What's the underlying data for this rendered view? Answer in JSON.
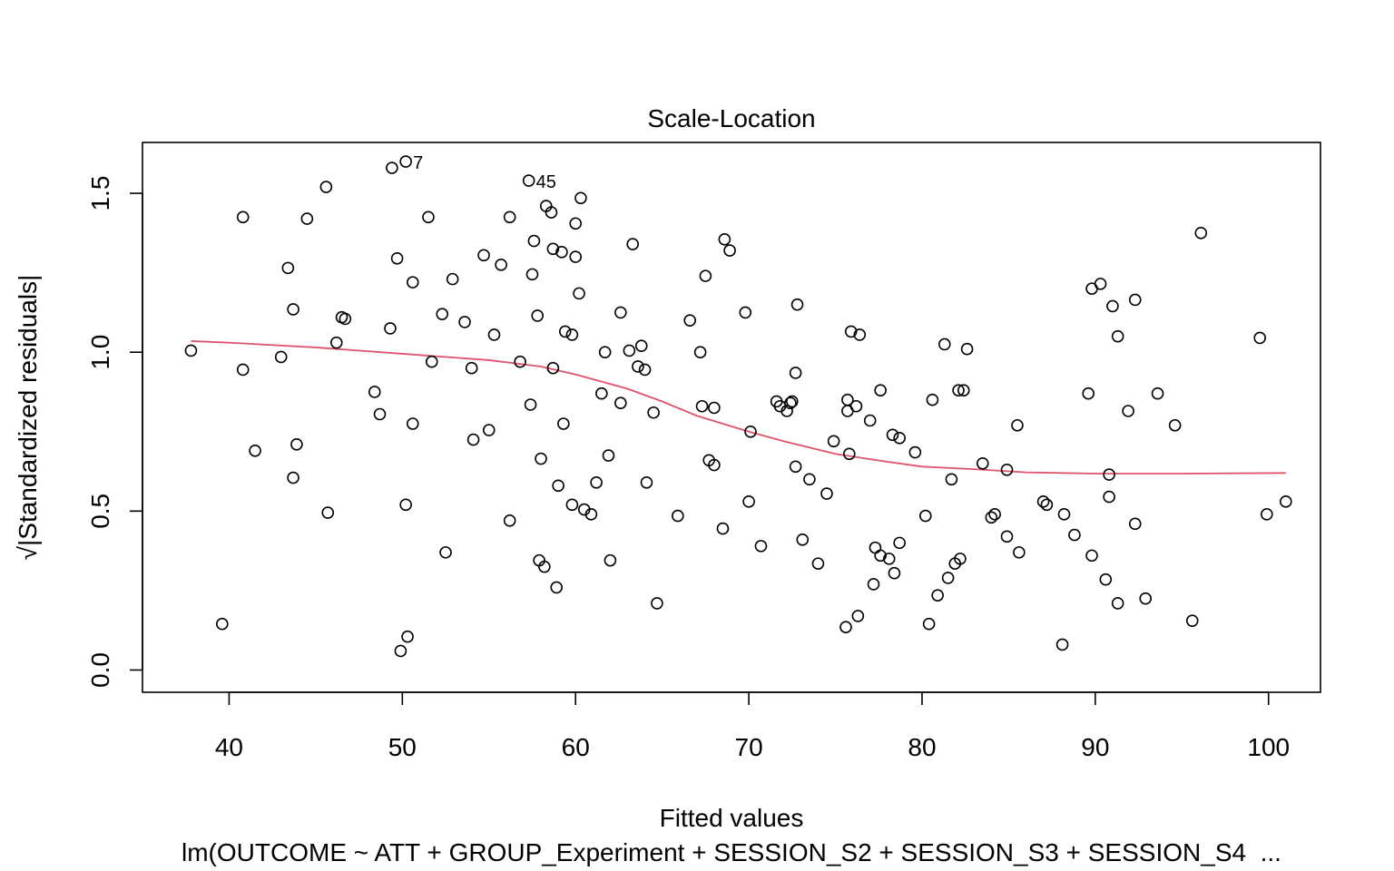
{
  "chart_data": {
    "type": "scatter",
    "title": "Scale-Location",
    "xlabel": "Fitted values",
    "ylabel_radical": "√",
    "ylabel": "|Standardized residuals|",
    "subtitle": "lm(OUTCOME ~ ATT + GROUP_Experiment + SESSION_S2 + SESSION_S3 + SESSION_S4  ...",
    "xlim": [
      35,
      103
    ],
    "ylim": [
      -0.07,
      1.66
    ],
    "xticks": [
      40,
      50,
      60,
      70,
      80,
      90,
      100
    ],
    "yticks": [
      0.0,
      0.5,
      1.0,
      1.5
    ],
    "xtick_labels": [
      "40",
      "50",
      "60",
      "70",
      "80",
      "90",
      "100"
    ],
    "ytick_labels": [
      "0.0",
      "0.5",
      "1.0",
      "1.5"
    ],
    "smooth_color": "#DF536B",
    "smooth": [
      [
        37.8,
        1.035
      ],
      [
        40,
        1.03
      ],
      [
        45,
        1.015
      ],
      [
        50,
        0.995
      ],
      [
        55,
        0.975
      ],
      [
        58,
        0.955
      ],
      [
        60,
        0.93
      ],
      [
        63,
        0.885
      ],
      [
        65,
        0.845
      ],
      [
        67,
        0.8
      ],
      [
        70,
        0.75
      ],
      [
        72,
        0.72
      ],
      [
        75,
        0.68
      ],
      [
        78,
        0.655
      ],
      [
        80,
        0.64
      ],
      [
        83,
        0.632
      ],
      [
        86,
        0.622
      ],
      [
        90,
        0.618
      ],
      [
        95,
        0.618
      ],
      [
        101,
        0.62
      ]
    ],
    "labeled_points": [
      {
        "label": "7",
        "x": 50.2,
        "y": 1.6
      },
      {
        "label": "45",
        "x": 57.3,
        "y": 1.54
      }
    ],
    "points": [
      [
        37.8,
        1.005
      ],
      [
        39.6,
        0.145
      ],
      [
        40.8,
        1.425
      ],
      [
        40.8,
        0.945
      ],
      [
        41.5,
        0.69
      ],
      [
        43.0,
        0.985
      ],
      [
        43.4,
        1.265
      ],
      [
        43.7,
        1.135
      ],
      [
        43.9,
        0.71
      ],
      [
        43.7,
        0.605
      ],
      [
        44.5,
        1.42
      ],
      [
        45.6,
        1.52
      ],
      [
        45.7,
        0.495
      ],
      [
        46.2,
        1.03
      ],
      [
        46.5,
        1.11
      ],
      [
        46.7,
        1.105
      ],
      [
        48.4,
        0.875
      ],
      [
        48.7,
        0.805
      ],
      [
        49.3,
        1.075
      ],
      [
        49.4,
        1.58
      ],
      [
        49.7,
        1.295
      ],
      [
        49.9,
        0.06
      ],
      [
        50.2,
        1.6
      ],
      [
        50.2,
        0.52
      ],
      [
        50.3,
        0.105
      ],
      [
        50.6,
        1.22
      ],
      [
        50.6,
        0.775
      ],
      [
        51.5,
        1.425
      ],
      [
        51.7,
        0.97
      ],
      [
        52.3,
        1.12
      ],
      [
        52.5,
        0.37
      ],
      [
        52.9,
        1.23
      ],
      [
        53.6,
        1.095
      ],
      [
        54.0,
        0.95
      ],
      [
        54.1,
        0.725
      ],
      [
        54.7,
        1.305
      ],
      [
        55.0,
        0.755
      ],
      [
        55.3,
        1.055
      ],
      [
        55.7,
        1.275
      ],
      [
        56.2,
        0.47
      ],
      [
        56.2,
        1.425
      ],
      [
        56.8,
        0.97
      ],
      [
        57.3,
        1.54
      ],
      [
        57.4,
        0.835
      ],
      [
        57.5,
        1.245
      ],
      [
        57.6,
        1.35
      ],
      [
        57.8,
        1.115
      ],
      [
        57.9,
        0.345
      ],
      [
        58.0,
        0.665
      ],
      [
        58.2,
        0.325
      ],
      [
        58.3,
        1.46
      ],
      [
        58.6,
        1.44
      ],
      [
        58.7,
        1.325
      ],
      [
        58.7,
        0.95
      ],
      [
        58.9,
        0.26
      ],
      [
        59.0,
        0.58
      ],
      [
        59.2,
        1.315
      ],
      [
        59.3,
        0.775
      ],
      [
        59.4,
        1.065
      ],
      [
        59.8,
        1.055
      ],
      [
        59.8,
        0.52
      ],
      [
        60.0,
        1.3
      ],
      [
        60.0,
        1.405
      ],
      [
        60.2,
        1.185
      ],
      [
        60.3,
        1.485
      ],
      [
        60.5,
        0.505
      ],
      [
        60.9,
        0.49
      ],
      [
        61.2,
        0.59
      ],
      [
        61.5,
        0.87
      ],
      [
        61.7,
        1.0
      ],
      [
        61.9,
        0.675
      ],
      [
        62.0,
        0.345
      ],
      [
        62.6,
        1.125
      ],
      [
        62.6,
        0.84
      ],
      [
        63.1,
        1.005
      ],
      [
        63.3,
        1.34
      ],
      [
        63.6,
        0.955
      ],
      [
        63.8,
        1.02
      ],
      [
        64.0,
        0.945
      ],
      [
        64.1,
        0.59
      ],
      [
        64.5,
        0.81
      ],
      [
        64.7,
        0.21
      ],
      [
        65.9,
        0.485
      ],
      [
        66.6,
        1.1
      ],
      [
        67.2,
        1.0
      ],
      [
        67.3,
        0.83
      ],
      [
        67.5,
        1.24
      ],
      [
        67.7,
        0.66
      ],
      [
        68.0,
        0.825
      ],
      [
        68.0,
        0.645
      ],
      [
        68.5,
        0.445
      ],
      [
        68.6,
        1.355
      ],
      [
        68.9,
        1.32
      ],
      [
        69.8,
        1.125
      ],
      [
        70.0,
        0.53
      ],
      [
        70.1,
        0.75
      ],
      [
        70.7,
        0.39
      ],
      [
        71.6,
        0.845
      ],
      [
        71.8,
        0.83
      ],
      [
        72.2,
        0.815
      ],
      [
        72.4,
        0.84
      ],
      [
        72.5,
        0.845
      ],
      [
        72.7,
        0.935
      ],
      [
        72.7,
        0.64
      ],
      [
        72.8,
        1.15
      ],
      [
        73.1,
        0.41
      ],
      [
        73.5,
        0.6
      ],
      [
        74.0,
        0.335
      ],
      [
        74.5,
        0.555
      ],
      [
        74.9,
        0.72
      ],
      [
        75.6,
        0.135
      ],
      [
        75.7,
        0.85
      ],
      [
        75.7,
        0.815
      ],
      [
        75.8,
        0.68
      ],
      [
        75.9,
        1.065
      ],
      [
        76.2,
        0.83
      ],
      [
        76.3,
        0.17
      ],
      [
        76.4,
        1.055
      ],
      [
        77.0,
        0.785
      ],
      [
        77.2,
        0.27
      ],
      [
        77.3,
        0.385
      ],
      [
        77.6,
        0.36
      ],
      [
        77.6,
        0.88
      ],
      [
        78.1,
        0.35
      ],
      [
        78.3,
        0.74
      ],
      [
        78.4,
        0.305
      ],
      [
        78.7,
        0.73
      ],
      [
        78.7,
        0.4
      ],
      [
        79.6,
        0.685
      ],
      [
        80.2,
        0.485
      ],
      [
        80.4,
        0.145
      ],
      [
        80.6,
        0.85
      ],
      [
        80.9,
        0.235
      ],
      [
        81.3,
        1.025
      ],
      [
        81.5,
        0.29
      ],
      [
        81.7,
        0.6
      ],
      [
        81.9,
        0.335
      ],
      [
        82.2,
        0.35
      ],
      [
        82.1,
        0.88
      ],
      [
        82.4,
        0.88
      ],
      [
        82.6,
        1.01
      ],
      [
        83.5,
        0.65
      ],
      [
        84.0,
        0.48
      ],
      [
        84.2,
        0.49
      ],
      [
        84.9,
        0.63
      ],
      [
        84.9,
        0.42
      ],
      [
        85.5,
        0.77
      ],
      [
        85.6,
        0.37
      ],
      [
        87.0,
        0.53
      ],
      [
        87.2,
        0.52
      ],
      [
        88.1,
        0.08
      ],
      [
        88.2,
        0.49
      ],
      [
        88.8,
        0.425
      ],
      [
        89.6,
        0.87
      ],
      [
        89.8,
        0.36
      ],
      [
        89.8,
        1.2
      ],
      [
        90.3,
        1.215
      ],
      [
        90.6,
        0.285
      ],
      [
        90.8,
        0.545
      ],
      [
        90.8,
        0.615
      ],
      [
        91.0,
        1.145
      ],
      [
        91.3,
        0.21
      ],
      [
        91.3,
        1.05
      ],
      [
        91.9,
        0.815
      ],
      [
        92.3,
        1.165
      ],
      [
        92.3,
        0.46
      ],
      [
        92.9,
        0.225
      ],
      [
        93.6,
        0.87
      ],
      [
        94.6,
        0.77
      ],
      [
        95.6,
        0.155
      ],
      [
        96.1,
        1.375
      ],
      [
        99.5,
        1.045
      ],
      [
        99.9,
        0.49
      ],
      [
        101.0,
        0.53
      ]
    ]
  }
}
